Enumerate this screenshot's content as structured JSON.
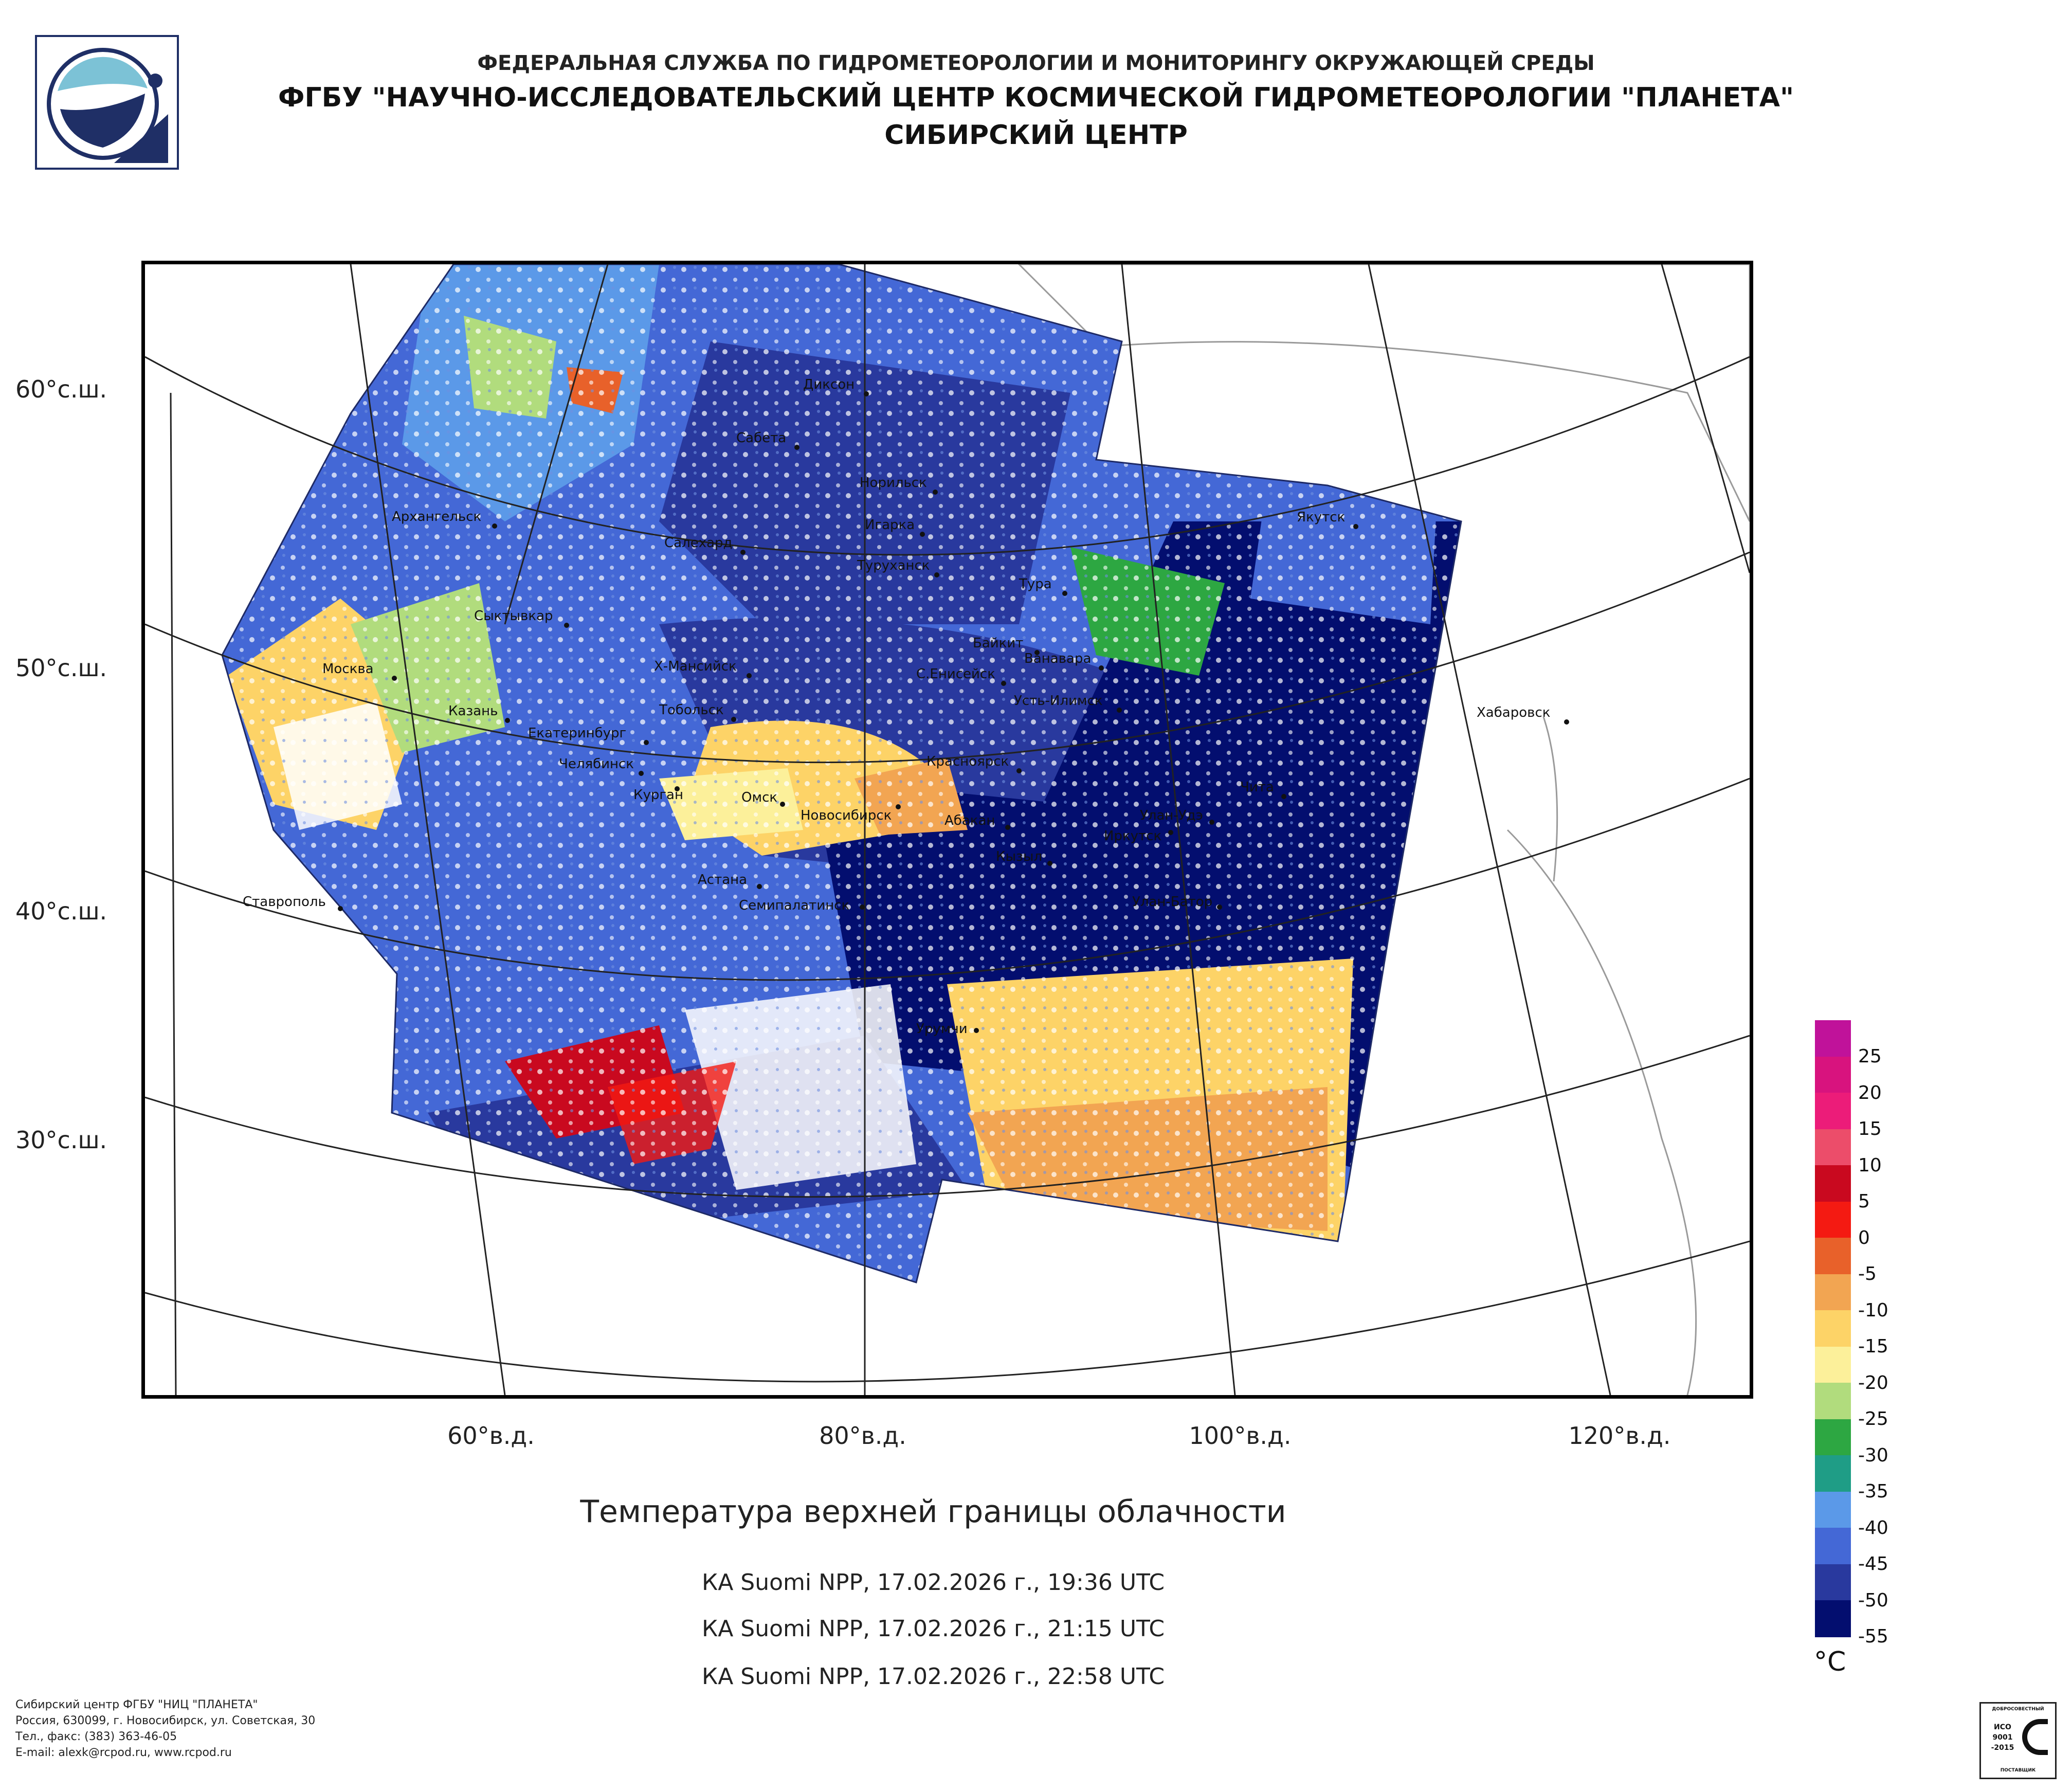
{
  "header": {
    "line1": "ФЕДЕРАЛЬНАЯ СЛУЖБА ПО ГИДРОМЕТЕОРОЛОГИИ И МОНИТОРИНГУ ОКРУЖАЮЩЕЙ СРЕДЫ",
    "line2": "ФГБУ \"НАУЧНО-ИССЛЕДОВАТЕЛЬСКИЙ ЦЕНТР КОСМИЧЕСКОЙ ГИДРОМЕТЕОРОЛОГИИ \"ПЛАНЕТА\"",
    "line3": "СИБИРСКИЙ ЦЕНТР"
  },
  "map": {
    "lat_labels": [
      "60°с.ш.",
      "50°с.ш.",
      "40°с.ш.",
      "30°с.ш."
    ],
    "lon_labels": [
      "60°в.д.",
      "80°в.д.",
      "100°в.д.",
      "120°в.д."
    ],
    "cities": [
      "Диксон",
      "Сабета",
      "Норильск",
      "Архангельск",
      "Игарка",
      "Салехард",
      "Туруханск",
      "Якутск",
      "Тура",
      "Сыктывкар",
      "Байкит",
      "Ванавара",
      "Москва",
      "Х-Мансийск",
      "С.Енисейск",
      "Усть-Илимск",
      "Хабаровск",
      "Казань",
      "Тобольск",
      "Екатеринбург",
      "Красноярск",
      "Челябинск",
      "Чита",
      "Курган",
      "Омск",
      "Новосибирск",
      "Абакан",
      "Улан-Удэ",
      "Иркутск",
      "Кызыл",
      "Астана",
      "Ставрополь",
      "Улан-Батор",
      "Семипалатинск",
      "Урумчи"
    ]
  },
  "legend": {
    "unit": "°C",
    "ticks": [
      "25",
      "20",
      "15",
      "10",
      "5",
      "0",
      "-5",
      "-10",
      "-15",
      "-20",
      "-25",
      "-30",
      "-35",
      "-40",
      "-45",
      "-50",
      "-55"
    ],
    "colors": [
      "#c0129a",
      "#d8137e",
      "#ec1c79",
      "#ec4d6a",
      "#c9091f",
      "#f41a12",
      "#e8612a",
      "#f2a552",
      "#fdd367",
      "#fcf09a",
      "#b1dc7d",
      "#2da742",
      "#1f9d86",
      "#5b99e8",
      "#4468d6",
      "#29399e",
      "#030e6f"
    ]
  },
  "title": "Температура верхней границы облачности",
  "passes": [
    "КА Suomi NPP, 17.02.2026 г., 19:36 UTC",
    "КА Suomi NPP, 17.02.2026 г., 21:15 UTC",
    "КА Suomi NPP, 17.02.2026 г., 22:58 UTC"
  ],
  "footer": [
    "Сибирский центр ФГБУ \"НИЦ \"ПЛАНЕТА\"",
    "Россия, 630099, г. Новосибирск, ул. Советская, 30",
    "Тел., факс: (383) 363-46-05",
    "E-mail: alexk@rcpod.ru, www.rcpod.ru"
  ],
  "cert": {
    "top": "ДОБРОСОВЕСТНЫЙ",
    "l1": "ИСО",
    "l2": "9001",
    "l3": "-2015",
    "bottom": "ПОСТАВЩИК"
  }
}
